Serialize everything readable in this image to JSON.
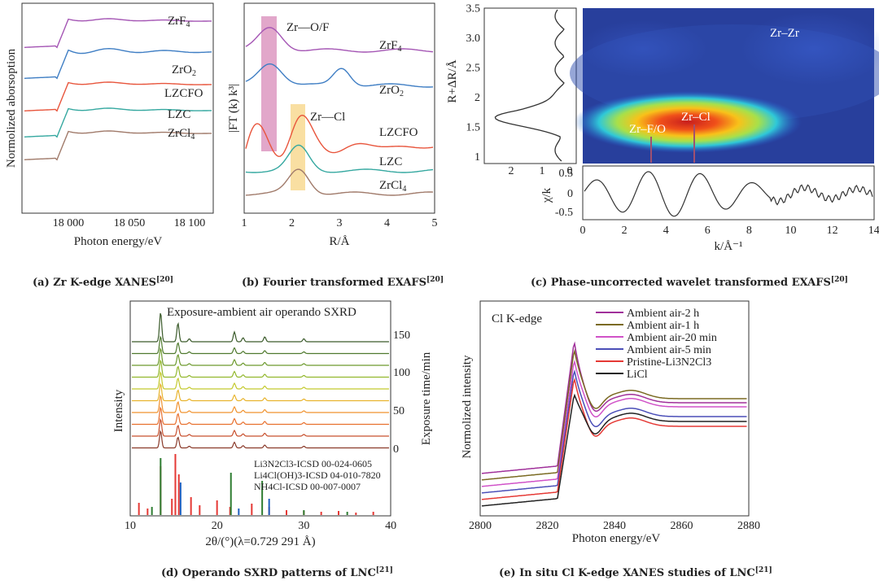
{
  "chart_data": [
    {
      "type": "line",
      "id": "a",
      "caption": "(a) Zr K-edge XANES",
      "caption_ref": "[20]",
      "xlabel": "Photon energy/eV",
      "ylabel": "Normolized aborsoption",
      "xticks": [
        "18 000",
        "18 050",
        "18 100"
      ],
      "series": [
        {
          "name": "ZrF4",
          "color": "#a455b4"
        },
        {
          "name": "ZrO2",
          "color": "#3f7ec4"
        },
        {
          "name": "LZCFO",
          "color": "#e8553c"
        },
        {
          "name": "LZC",
          "color": "#35a8a0"
        },
        {
          "name": "ZrCl4",
          "color": "#a07a6a"
        }
      ]
    },
    {
      "type": "line",
      "id": "b",
      "caption": "(b) Fourier transformed EXAFS",
      "caption_ref": "[20]",
      "xlabel": "R/Å",
      "ylabel": "|FT (k) k³|",
      "xticks": [
        "1",
        "2",
        "3",
        "4",
        "5"
      ],
      "annotations": [
        "Zr—O/F",
        "Zr—Cl"
      ],
      "series": [
        {
          "name": "ZrF4",
          "color": "#a455b4"
        },
        {
          "name": "ZrO2",
          "color": "#3f7ec4"
        },
        {
          "name": "LZCFO",
          "color": "#e8553c"
        },
        {
          "name": "LZC",
          "color": "#35a8a0"
        },
        {
          "name": "ZrCl4",
          "color": "#a07a6a"
        }
      ]
    },
    {
      "type": "heatmap",
      "id": "c",
      "caption": "(c) Phase-uncorrected wavelet transformed EXAFS",
      "caption_ref": "[20]",
      "ylabel": "R+ΔR/Å",
      "xlabel": "k/Å⁻¹",
      "yticks": [
        "1",
        "1.5",
        "2",
        "2.5",
        "3.0",
        "3.5"
      ],
      "left_xticks": [
        "2",
        "1",
        "0"
      ],
      "bottom_ylabel": "χ/k",
      "bottom_yticks": [
        "0.5",
        "0",
        "-0.5"
      ],
      "xticks": [
        "0",
        "2",
        "4",
        "6",
        "8",
        "10",
        "12",
        "14"
      ],
      "annotations": [
        "Zr–Zr",
        "Zr–Cl",
        "Zr–F/O"
      ]
    },
    {
      "type": "line",
      "id": "d",
      "caption": "(d) Operando SXRD patterns of LNC",
      "caption_ref": "[21]",
      "title": "Exposure-ambient air operando SXRD",
      "xlabel": "2θ/(°)(λ=0.729 291 Å)",
      "ylabel": "Intensity",
      "right_label": "Exposure time/min",
      "xticks": [
        "10",
        "20",
        "30",
        "40"
      ],
      "right_ticks": [
        "150",
        "100",
        "50",
        "0"
      ],
      "references": [
        {
          "name": "Li3N2Cl3-ICSD 00-024-0605",
          "color": "#e53935"
        },
        {
          "name": "Li4Cl(OH)3-ICSD 04-010-7820",
          "color": "#2e7d32"
        },
        {
          "name": "NH4Cl-ICSD 00-007-0007",
          "color": "#1e5fbf"
        }
      ]
    },
    {
      "type": "line",
      "id": "e",
      "caption": "(e) In situ Cl K-edge XANES studies of LNC",
      "caption_ref": "[21]",
      "title": "Cl K-edge",
      "xlabel": "Photon energy/eV",
      "ylabel": "Normolized intensity",
      "xticks": [
        "2800",
        "2820",
        "2840",
        "2860",
        "2880"
      ],
      "series": [
        {
          "name": "Ambient air-2 h",
          "color": "#a0309a"
        },
        {
          "name": "Ambient air-1 h",
          "color": "#7a6a22"
        },
        {
          "name": "Ambient air-20 min",
          "color": "#d052c8"
        },
        {
          "name": "Ambient air-5 min",
          "color": "#4b4fb8"
        },
        {
          "name": "Pristine-Li3N2Cl3",
          "color": "#e53935"
        },
        {
          "name": "LiCl",
          "color": "#222222"
        }
      ]
    }
  ]
}
